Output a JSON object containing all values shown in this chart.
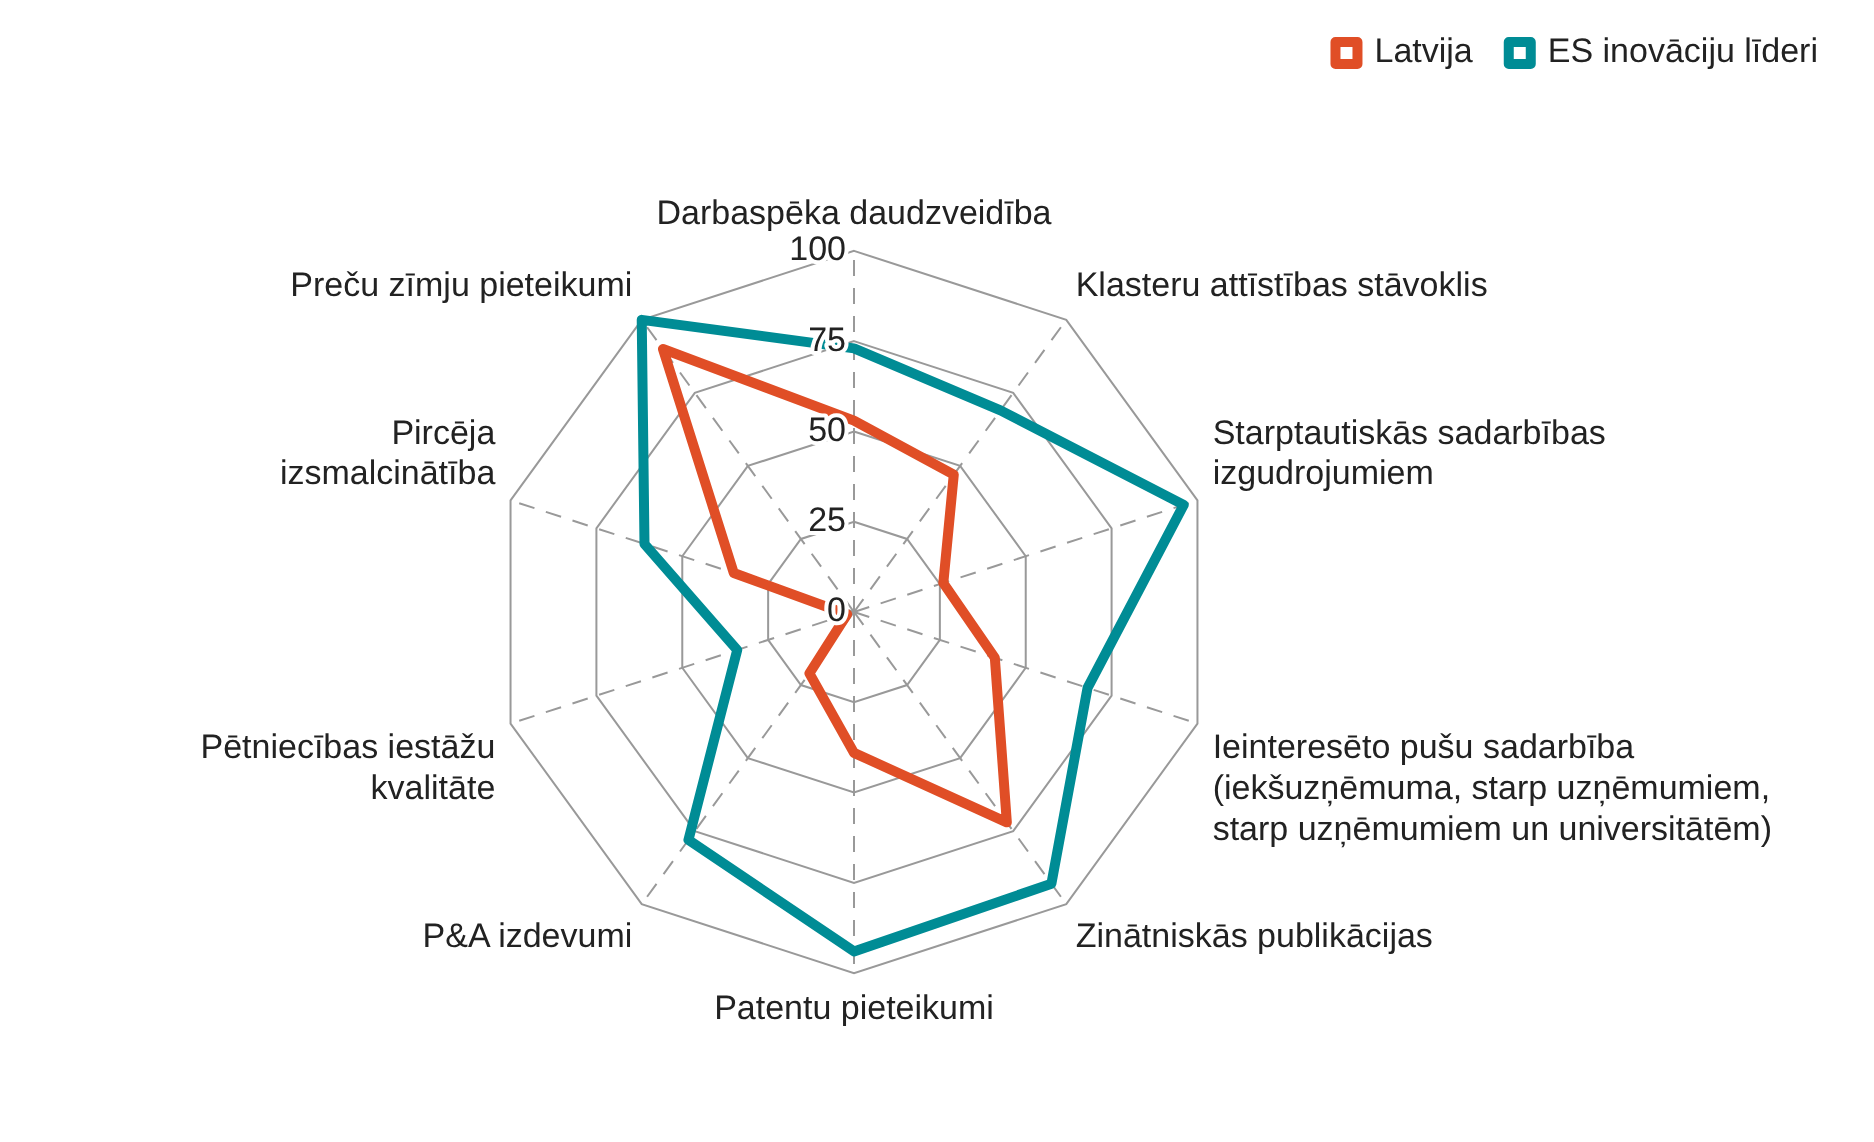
{
  "chart_data": {
    "type": "radar",
    "categories": [
      "Darbaspēka daudzveidība",
      "Klasteru attīstības stāvoklis",
      "Starptautiskās sadarbības\nizgudrojumiem",
      "Ieinteresēto pušu sadarbība\n(iekšuzņēmuma, starp uzņēmumiem,\nstarp uzņēmumiem un universitātēm)",
      "Zinātniskās publikācijas",
      "Patentu pieteikumi",
      "P&A izdevumi",
      "Pētniecības iestāžu\nkvalitāte",
      "Pircēja\nizsmalcinātība",
      "Preču zīmju pieteikumi"
    ],
    "series": [
      {
        "name": "Latvija",
        "color": "#e04e26",
        "values": [
          53,
          47,
          26,
          41,
          72,
          39,
          21,
          2,
          35,
          90
        ]
      },
      {
        "name": "ES inovāciju līderi",
        "color": "#008c95",
        "values": [
          73,
          69,
          96,
          68,
          93,
          94,
          78,
          34,
          61,
          100
        ]
      }
    ],
    "ylim": [
      0,
      100
    ],
    "yticks": [
      0,
      25,
      50,
      75,
      100
    ],
    "grid": true,
    "legend": "top right",
    "marker": "none",
    "line_style": "solid"
  }
}
